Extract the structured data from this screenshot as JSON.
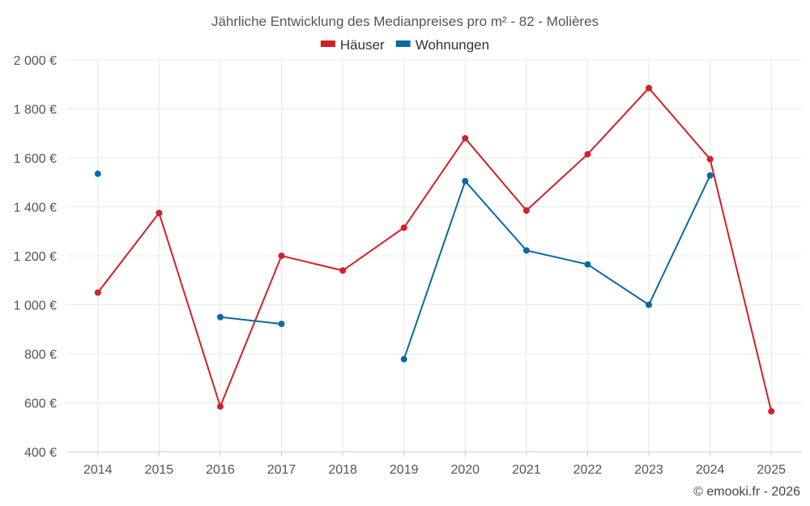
{
  "chart_data": {
    "type": "line",
    "title": "Jährliche Entwicklung des Medianpreises pro m² - 82 - Molières",
    "categories": [
      "2014",
      "2015",
      "2016",
      "2017",
      "2018",
      "2019",
      "2020",
      "2021",
      "2022",
      "2023",
      "2024",
      "2025"
    ],
    "ylim": [
      400,
      2000
    ],
    "yticks": [
      400,
      600,
      800,
      1000,
      1200,
      1400,
      1600,
      1800,
      2000
    ],
    "ytick_labels": [
      "400 €",
      "600 €",
      "800 €",
      "1 000 €",
      "1 200 €",
      "1 400 €",
      "1 600 €",
      "1 800 €",
      "2 000 €"
    ],
    "grid": true,
    "legend_position": "top-center",
    "series": [
      {
        "name": "Häuser",
        "color": "#d32027",
        "values": [
          1050,
          1375,
          585,
          1200,
          1140,
          1315,
          1680,
          1385,
          1615,
          1885,
          1595,
          565
        ]
      },
      {
        "name": "Wohnungen",
        "color": "#0a6aa1",
        "values": [
          1535,
          null,
          950,
          922,
          null,
          778,
          1505,
          1222,
          1165,
          1000,
          1528,
          null
        ]
      }
    ]
  },
  "credit": "© emooki.fr - 2026"
}
